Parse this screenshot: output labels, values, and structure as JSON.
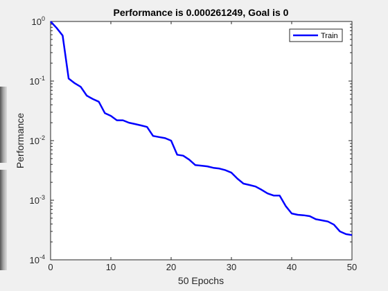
{
  "chart_data": {
    "type": "line",
    "title": "Performance is 0.000261249, Goal is 0",
    "xlabel": "50 Epochs",
    "ylabel": "Performance",
    "yscale": "log",
    "xlim": [
      0,
      50
    ],
    "ylim": [
      0.0001,
      1
    ],
    "grid": false,
    "legend_position": "top-right",
    "x_ticks": [
      0,
      10,
      20,
      30,
      40,
      50
    ],
    "y_ticks": [
      {
        "base": "10",
        "exp": "-4",
        "value": 0.0001
      },
      {
        "base": "10",
        "exp": "-3",
        "value": 0.001
      },
      {
        "base": "10",
        "exp": "-2",
        "value": 0.01
      },
      {
        "base": "10",
        "exp": "-1",
        "value": 0.1
      },
      {
        "base": "10",
        "exp": "0",
        "value": 1
      }
    ],
    "series": [
      {
        "name": "Train",
        "color": "#0000ff",
        "x": [
          0,
          1,
          2,
          3,
          4,
          5,
          6,
          7,
          8,
          9,
          10,
          11,
          12,
          13,
          14,
          15,
          16,
          17,
          18,
          19,
          20,
          21,
          22,
          23,
          24,
          25,
          26,
          27,
          28,
          29,
          30,
          31,
          32,
          33,
          34,
          35,
          36,
          37,
          38,
          39,
          40,
          41,
          42,
          43,
          44,
          45,
          46,
          47,
          48,
          49,
          50
        ],
        "y": [
          1.0,
          0.78,
          0.58,
          0.11,
          0.092,
          0.08,
          0.057,
          0.05,
          0.045,
          0.029,
          0.026,
          0.022,
          0.022,
          0.02,
          0.019,
          0.018,
          0.017,
          0.012,
          0.0115,
          0.011,
          0.01,
          0.0058,
          0.0056,
          0.0048,
          0.0039,
          0.0038,
          0.0037,
          0.0035,
          0.0034,
          0.0032,
          0.0029,
          0.0023,
          0.0019,
          0.0018,
          0.0017,
          0.0015,
          0.0013,
          0.0012,
          0.0012,
          0.0008,
          0.0006,
          0.00057,
          0.00056,
          0.00054,
          0.00048,
          0.00046,
          0.00044,
          0.00039,
          0.0003,
          0.00027,
          0.00026
        ]
      }
    ]
  }
}
